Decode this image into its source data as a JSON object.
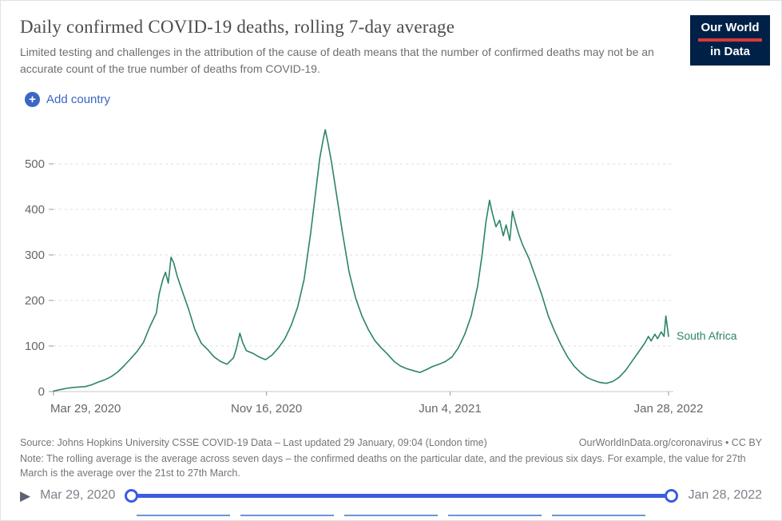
{
  "header": {
    "title": "Daily confirmed COVID-19 deaths, rolling 7-day average",
    "subtitle": "Limited testing and challenges in the attribution of the cause of death means that the number of confirmed deaths may not be an accurate count of the true number of deaths from COVID-19."
  },
  "logo": {
    "line1": "Our World",
    "line2": "in Data"
  },
  "controls": {
    "add_country_label": "Add country",
    "plus_icon": "+",
    "play_icon": "▶"
  },
  "chart_data": {
    "type": "line",
    "title": "Daily confirmed COVID-19 deaths, rolling 7-day average",
    "xlabel": "",
    "ylabel": "",
    "grid": "horizontal-dashed",
    "legend_position": "end-of-line",
    "ylim": [
      0,
      600
    ],
    "y_ticks": [
      0,
      100,
      200,
      300,
      400,
      500
    ],
    "x_range": [
      "2020-03-29",
      "2022-01-28"
    ],
    "x_ticks": [
      {
        "date": "2020-03-29",
        "label": "Mar 29, 2020"
      },
      {
        "date": "2020-11-16",
        "label": "Nov 16, 2020"
      },
      {
        "date": "2021-06-04",
        "label": "Jun 4, 2021"
      },
      {
        "date": "2022-01-28",
        "label": "Jan 28, 2022"
      }
    ],
    "series": [
      {
        "name": "South Africa",
        "color": "#2C8465",
        "points": [
          [
            "2020-03-29",
            1
          ],
          [
            "2020-04-05",
            4
          ],
          [
            "2020-04-12",
            7
          ],
          [
            "2020-04-19",
            9
          ],
          [
            "2020-04-26",
            10
          ],
          [
            "2020-05-03",
            11
          ],
          [
            "2020-05-10",
            15
          ],
          [
            "2020-05-17",
            21
          ],
          [
            "2020-05-24",
            26
          ],
          [
            "2020-05-31",
            33
          ],
          [
            "2020-06-07",
            43
          ],
          [
            "2020-06-14",
            57
          ],
          [
            "2020-06-21",
            72
          ],
          [
            "2020-06-28",
            88
          ],
          [
            "2020-07-05",
            108
          ],
          [
            "2020-07-12",
            143
          ],
          [
            "2020-07-19",
            172
          ],
          [
            "2020-07-22",
            214
          ],
          [
            "2020-07-26",
            246
          ],
          [
            "2020-07-29",
            262
          ],
          [
            "2020-08-01",
            238
          ],
          [
            "2020-08-04",
            295
          ],
          [
            "2020-08-07",
            282
          ],
          [
            "2020-08-11",
            252
          ],
          [
            "2020-08-16",
            222
          ],
          [
            "2020-08-23",
            182
          ],
          [
            "2020-08-30",
            136
          ],
          [
            "2020-09-06",
            106
          ],
          [
            "2020-09-13",
            92
          ],
          [
            "2020-09-20",
            76
          ],
          [
            "2020-09-27",
            66
          ],
          [
            "2020-10-04",
            60
          ],
          [
            "2020-10-11",
            74
          ],
          [
            "2020-10-14",
            93
          ],
          [
            "2020-10-18",
            128
          ],
          [
            "2020-10-21",
            108
          ],
          [
            "2020-10-25",
            90
          ],
          [
            "2020-11-01",
            84
          ],
          [
            "2020-11-08",
            76
          ],
          [
            "2020-11-15",
            70
          ],
          [
            "2020-11-22",
            80
          ],
          [
            "2020-11-29",
            96
          ],
          [
            "2020-12-06",
            116
          ],
          [
            "2020-12-13",
            146
          ],
          [
            "2020-12-20",
            186
          ],
          [
            "2020-12-27",
            246
          ],
          [
            "2021-01-03",
            346
          ],
          [
            "2021-01-08",
            428
          ],
          [
            "2021-01-13",
            512
          ],
          [
            "2021-01-17",
            556
          ],
          [
            "2021-01-19",
            575
          ],
          [
            "2021-01-22",
            546
          ],
          [
            "2021-01-26",
            502
          ],
          [
            "2021-01-31",
            436
          ],
          [
            "2021-02-07",
            346
          ],
          [
            "2021-02-14",
            262
          ],
          [
            "2021-02-21",
            206
          ],
          [
            "2021-02-28",
            166
          ],
          [
            "2021-03-07",
            136
          ],
          [
            "2021-03-14",
            112
          ],
          [
            "2021-03-21",
            96
          ],
          [
            "2021-03-28",
            82
          ],
          [
            "2021-04-04",
            66
          ],
          [
            "2021-04-11",
            56
          ],
          [
            "2021-04-18",
            50
          ],
          [
            "2021-04-25",
            46
          ],
          [
            "2021-05-02",
            42
          ],
          [
            "2021-05-09",
            48
          ],
          [
            "2021-05-16",
            55
          ],
          [
            "2021-05-23",
            60
          ],
          [
            "2021-05-30",
            66
          ],
          [
            "2021-06-06",
            76
          ],
          [
            "2021-06-13",
            96
          ],
          [
            "2021-06-20",
            126
          ],
          [
            "2021-06-27",
            166
          ],
          [
            "2021-07-04",
            232
          ],
          [
            "2021-07-09",
            302
          ],
          [
            "2021-07-13",
            372
          ],
          [
            "2021-07-17",
            420
          ],
          [
            "2021-07-20",
            392
          ],
          [
            "2021-07-24",
            362
          ],
          [
            "2021-07-28",
            376
          ],
          [
            "2021-08-01",
            342
          ],
          [
            "2021-08-04",
            366
          ],
          [
            "2021-08-08",
            332
          ],
          [
            "2021-08-11",
            396
          ],
          [
            "2021-08-14",
            372
          ],
          [
            "2021-08-18",
            344
          ],
          [
            "2021-08-22",
            322
          ],
          [
            "2021-08-29",
            292
          ],
          [
            "2021-09-05",
            252
          ],
          [
            "2021-09-12",
            212
          ],
          [
            "2021-09-19",
            166
          ],
          [
            "2021-09-26",
            132
          ],
          [
            "2021-10-03",
            102
          ],
          [
            "2021-10-10",
            76
          ],
          [
            "2021-10-17",
            56
          ],
          [
            "2021-10-24",
            42
          ],
          [
            "2021-10-31",
            31
          ],
          [
            "2021-11-07",
            25
          ],
          [
            "2021-11-14",
            20
          ],
          [
            "2021-11-21",
            18
          ],
          [
            "2021-11-28",
            22
          ],
          [
            "2021-12-05",
            31
          ],
          [
            "2021-12-12",
            46
          ],
          [
            "2021-12-19",
            66
          ],
          [
            "2021-12-26",
            86
          ],
          [
            "2022-01-02",
            106
          ],
          [
            "2022-01-06",
            121
          ],
          [
            "2022-01-09",
            111
          ],
          [
            "2022-01-13",
            126
          ],
          [
            "2022-01-16",
            116
          ],
          [
            "2022-01-20",
            131
          ],
          [
            "2022-01-23",
            121
          ],
          [
            "2022-01-25",
            166
          ],
          [
            "2022-01-28",
            121
          ]
        ]
      }
    ]
  },
  "footer": {
    "source_left": "Source: Johns Hopkins University CSSE COVID-19 Data – Last updated 29 January, 09:04 (London time)",
    "source_right": "OurWorldInData.org/coronavirus • CC BY",
    "note": "Note: The rolling average is the average across seven days – the confirmed deaths on the particular date, and the previous six days. For example, the value for 27th March is the average over the 21st to 27th March."
  },
  "timeline": {
    "start_label": "Mar 29, 2020",
    "end_label": "Jan 28, 2022"
  }
}
